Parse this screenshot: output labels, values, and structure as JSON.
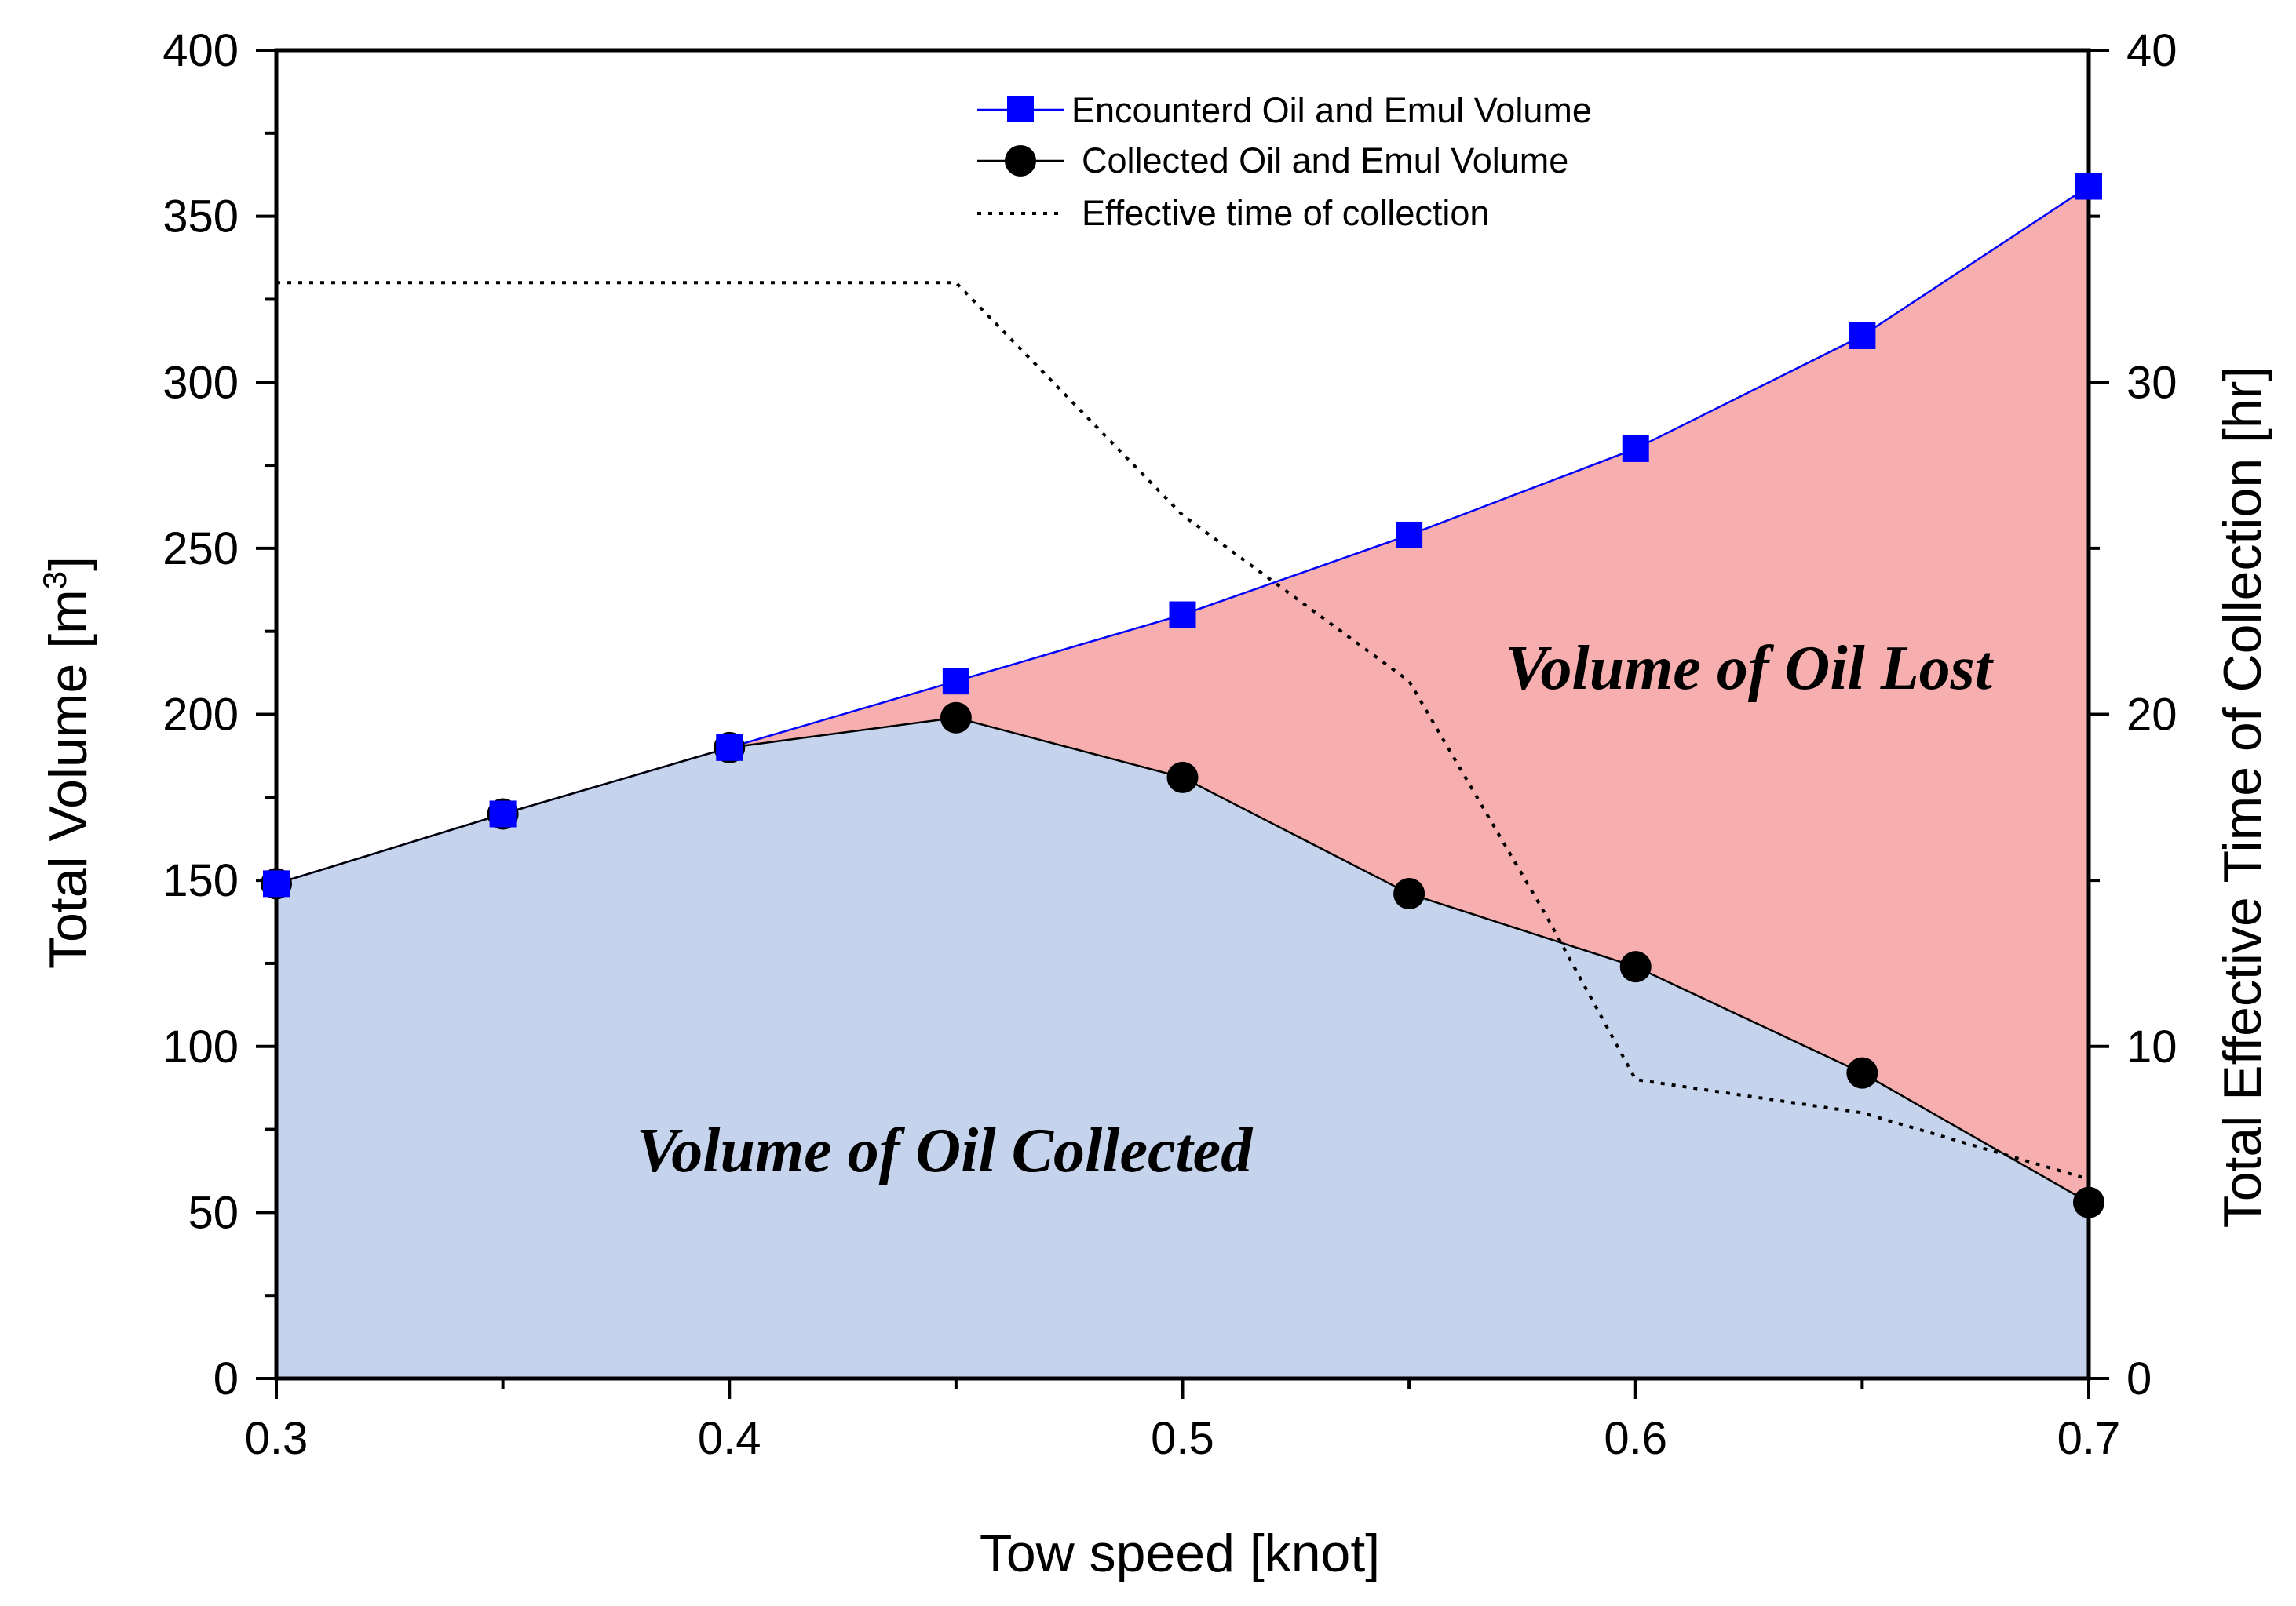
{
  "chart_data": {
    "type": "line",
    "title": "",
    "xlabel": "Tow speed [knot]",
    "ylabel_text": "Total Volume [m",
    "ylabel_sup": "3",
    "ylabel_end": "]",
    "y2label": "Total Effective Time of Collection [hr]",
    "xlim": [
      0.3,
      0.7
    ],
    "ylim": [
      0,
      400
    ],
    "y2lim": [
      0,
      40
    ],
    "x": [
      0.3,
      0.35,
      0.4,
      0.45,
      0.5,
      0.55,
      0.6,
      0.65,
      0.7
    ],
    "xticks": [
      "0.3",
      "0.4",
      "0.5",
      "0.6",
      "0.7"
    ],
    "yticks": [
      "0",
      "50",
      "100",
      "150",
      "200",
      "250",
      "300",
      "350",
      "400"
    ],
    "y2ticks": [
      "0",
      "10",
      "20",
      "30",
      "40"
    ],
    "series": [
      {
        "name": "Encounterd Oil and Emul Volume",
        "axis": "left",
        "marker": "square",
        "color": "#0000ff",
        "values": [
          149,
          170,
          190,
          210,
          230,
          254,
          280,
          314,
          359
        ]
      },
      {
        "name": "Collected Oil and Emul Volume",
        "axis": "left",
        "marker": "circle",
        "color": "#000000",
        "values": [
          149,
          170,
          190,
          199,
          181,
          146,
          124,
          92,
          53
        ]
      },
      {
        "name": "Effective time of collection",
        "axis": "right",
        "style": "dotted",
        "color": "#000000",
        "x": [
          0.3,
          0.45,
          0.5,
          0.55,
          0.58,
          0.6,
          0.65,
          0.7
        ],
        "values": [
          33,
          33,
          26,
          21,
          14,
          9,
          8,
          6
        ]
      }
    ],
    "regions": [
      {
        "label": "Volume of Oil Collected",
        "color": "#c5d3ec"
      },
      {
        "label": "Volume of Oil Lost",
        "color": "#f7aeae"
      }
    ],
    "legend_position": "top-center",
    "grid": false
  }
}
